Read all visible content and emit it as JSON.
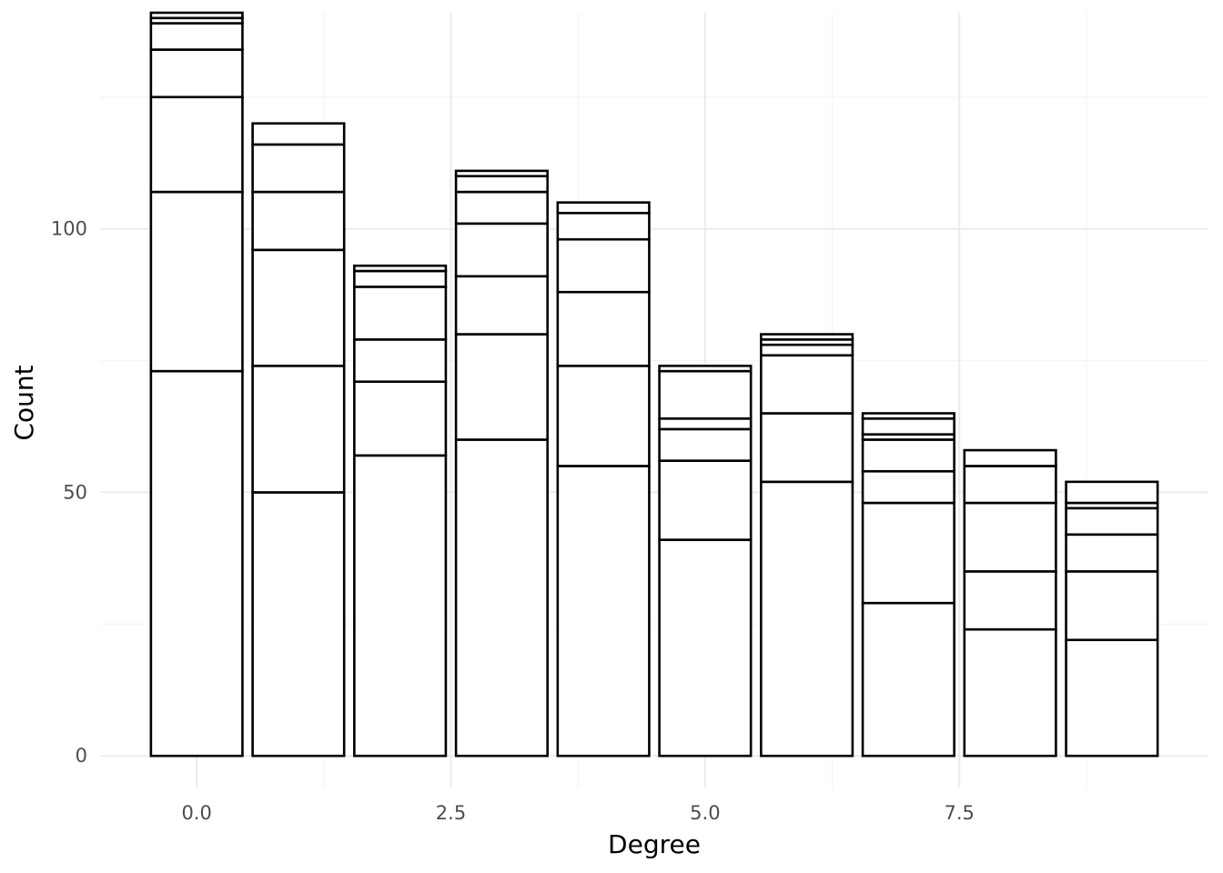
{
  "chart_data": {
    "type": "bar",
    "stacked": true,
    "xlabel": "Degree",
    "ylabel": "Count",
    "xlim": [
      -0.95,
      9.95
    ],
    "ylim": [
      -6,
      141
    ],
    "x_major_ticks": [
      0,
      2.5,
      5,
      7.5
    ],
    "x_tick_labels": [
      "0.0",
      "2.5",
      "5.0",
      "7.5"
    ],
    "x_minor_ticks": [
      1.25,
      3.75,
      6.25,
      8.75
    ],
    "y_major_ticks": [
      0,
      50,
      100
    ],
    "y_tick_labels": [
      "0",
      "50",
      "100"
    ],
    "y_minor_ticks": [
      25,
      75,
      125
    ],
    "grid": true,
    "bar_fill": "#ffffff",
    "bar_outline": "#000000",
    "categories": [
      0,
      1,
      2,
      3,
      4,
      5,
      6,
      7,
      8,
      9
    ],
    "stack_boundaries": [
      [
        73,
        107,
        125,
        134,
        139,
        140,
        141
      ],
      [
        50,
        74,
        96,
        107,
        116,
        120
      ],
      [
        57,
        71,
        79,
        89,
        92,
        93
      ],
      [
        60,
        80,
        91,
        101,
        107,
        110,
        111
      ],
      [
        55,
        74,
        88,
        98,
        103,
        105
      ],
      [
        41,
        56,
        62,
        64,
        73,
        74
      ],
      [
        52,
        65,
        76,
        78,
        79,
        80
      ],
      [
        29,
        48,
        54,
        60,
        61,
        64,
        65
      ],
      [
        24,
        35,
        48,
        55,
        58
      ],
      [
        22,
        35,
        42,
        47,
        48,
        52
      ]
    ],
    "totals": [
      141,
      120,
      93,
      111,
      105,
      74,
      80,
      65,
      58,
      52
    ]
  }
}
